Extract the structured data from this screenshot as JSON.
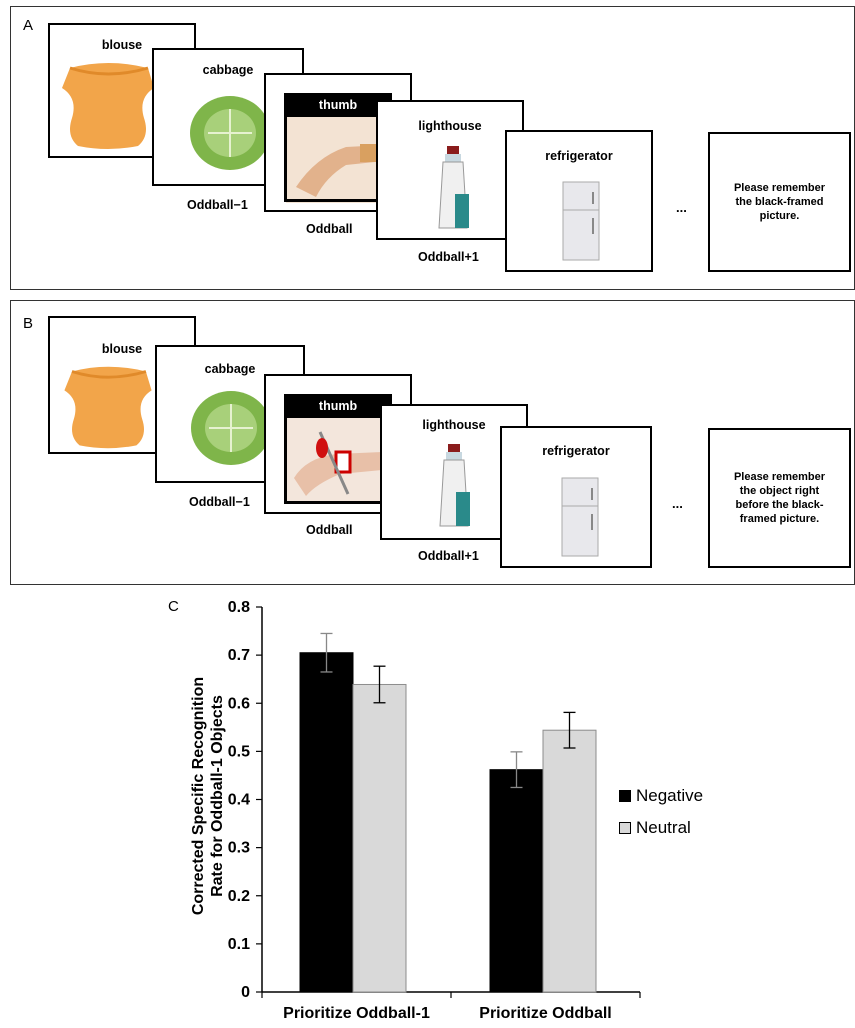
{
  "panel_a": {
    "letter": "A",
    "cards": [
      {
        "word": "blouse"
      },
      {
        "word": "cabbage"
      },
      {
        "word": "thumb"
      },
      {
        "word": "lighthouse"
      },
      {
        "word": "refrigerator"
      }
    ],
    "labels": [
      "Oddball−1",
      "Oddball",
      "Oddball+1"
    ],
    "ellipsis": "...",
    "instruction": "Please remember the black-framed picture."
  },
  "panel_b": {
    "letter": "B",
    "cards": [
      {
        "word": "blouse"
      },
      {
        "word": "cabbage"
      },
      {
        "word": "thumb"
      },
      {
        "word": "lighthouse"
      },
      {
        "word": "refrigerator"
      }
    ],
    "labels": [
      "Oddball−1",
      "Oddball",
      "Oddball+1"
    ],
    "ellipsis": "...",
    "instruction": "Please remember the object right before the black-framed picture."
  },
  "panel_c": {
    "letter": "C",
    "ylabel_line1": "Corrected Specific Recognition",
    "ylabel_line2": "Rate for Oddball-1 Objects"
  },
  "chart_data": {
    "type": "bar",
    "categories": [
      "Prioritize Oddball-1",
      "Prioritize Oddball"
    ],
    "series": [
      {
        "name": "Negative",
        "values": [
          0.705,
          0.462
        ],
        "errors": [
          0.04,
          0.037
        ],
        "color": "#000000"
      },
      {
        "name": "Neutral",
        "values": [
          0.639,
          0.544
        ],
        "errors": [
          0.038,
          0.037
        ],
        "color": "#d9d9d9"
      }
    ],
    "ylim": [
      0,
      0.8
    ],
    "yticks": [
      "0",
      "0.1",
      "0.2",
      "0.3",
      "0.4",
      "0.5",
      "0.6",
      "0.7",
      "0.8"
    ],
    "legend_position": "right"
  }
}
